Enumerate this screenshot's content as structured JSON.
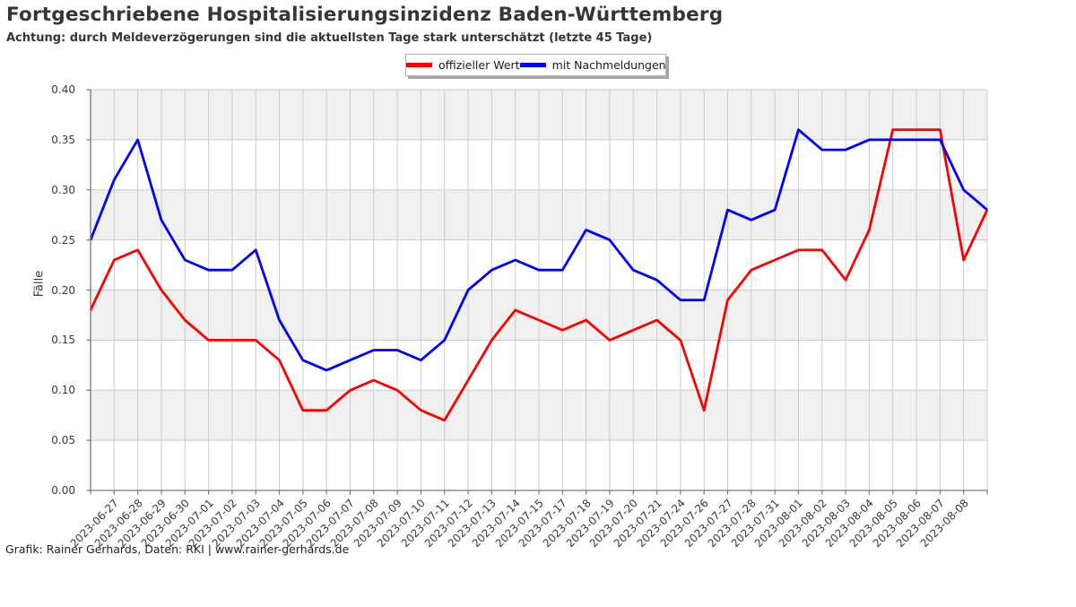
{
  "header": {
    "title": "Fortgeschriebene Hospitalisierungsinzidenz Baden-Württemberg",
    "subtitle": "Achtung: durch Meldeverzögerungen sind die aktuellsten Tage stark unterschätzt (letzte 45 Tage)"
  },
  "legend": {
    "items": [
      {
        "label": "offizieller Wert",
        "color": "#ff0000"
      },
      {
        "label": "mit Nachmeldungen",
        "color": "#0000ff"
      }
    ]
  },
  "footer": {
    "credit": "Grafik: Rainer Gerhards, Daten: RKI | www.rainer-gerhards.de"
  },
  "chart_data": {
    "type": "line",
    "title": "Fortgeschriebene Hospitalisierungsinzidenz Baden-Württemberg",
    "subtitle": "Achtung: durch Meldeverzögerungen sind die aktuellsten Tage stark unterschätzt (letzte 45 Tage)",
    "xlabel": "",
    "ylabel": "Fälle",
    "ylim": [
      0.0,
      0.4
    ],
    "yticks": [
      "0.00",
      "0.05",
      "0.10",
      "0.15",
      "0.20",
      "0.25",
      "0.30",
      "0.35",
      "0.40"
    ],
    "grid": true,
    "legend_position": "top-center",
    "band_color": "#f0f0f0",
    "grid_color": "#cccccc",
    "spine_color": "#777777",
    "shaded_bands": [
      [
        0.05,
        0.1
      ],
      [
        0.15,
        0.2
      ],
      [
        0.25,
        0.3
      ],
      [
        0.35,
        0.4
      ]
    ],
    "categories": [
      "",
      "2023-06-27",
      "2023-06-28",
      "2023-06-29",
      "2023-06-30",
      "2023-07-01",
      "2023-07-02",
      "2023-07-03",
      "2023-07-04",
      "2023-07-05",
      "2023-07-06",
      "2023-07-07",
      "2023-07-08",
      "2023-07-09",
      "2023-07-10",
      "2023-07-11",
      "2023-07-12",
      "2023-07-13",
      "2023-07-14",
      "2023-07-15",
      "2023-07-17",
      "2023-07-18",
      "2023-07-19",
      "2023-07-20",
      "2023-07-21",
      "2023-07-24",
      "2023-07-26",
      "2023-07-27",
      "2023-07-28",
      "2023-07-31",
      "2023-08-01",
      "2023-08-02",
      "2023-08-03",
      "2023-08-04",
      "2023-08-05",
      "2023-08-06",
      "2023-08-07",
      "2023-08-08",
      ""
    ],
    "series": [
      {
        "name": "offizieller Wert",
        "color": "#ff0000",
        "values": [
          0.18,
          0.23,
          0.24,
          0.2,
          0.17,
          0.15,
          0.15,
          0.15,
          0.13,
          0.08,
          0.08,
          0.1,
          0.11,
          0.1,
          0.08,
          0.07,
          0.11,
          0.15,
          0.18,
          0.17,
          0.16,
          0.17,
          0.15,
          0.16,
          0.17,
          0.15,
          0.08,
          0.19,
          0.22,
          0.23,
          0.24,
          0.24,
          0.21,
          0.26,
          0.36,
          0.36,
          0.36,
          0.23,
          0.28
        ]
      },
      {
        "name": "mit Nachmeldungen",
        "color": "#0000ff",
        "values": [
          0.25,
          0.31,
          0.35,
          0.27,
          0.23,
          0.22,
          0.22,
          0.24,
          0.17,
          0.13,
          0.12,
          0.13,
          0.14,
          0.14,
          0.13,
          0.15,
          0.2,
          0.22,
          0.23,
          0.22,
          0.22,
          0.26,
          0.25,
          0.22,
          0.21,
          0.19,
          0.19,
          0.28,
          0.27,
          0.28,
          0.36,
          0.34,
          0.34,
          0.35,
          0.35,
          0.35,
          0.35,
          0.3,
          0.28
        ]
      }
    ]
  }
}
